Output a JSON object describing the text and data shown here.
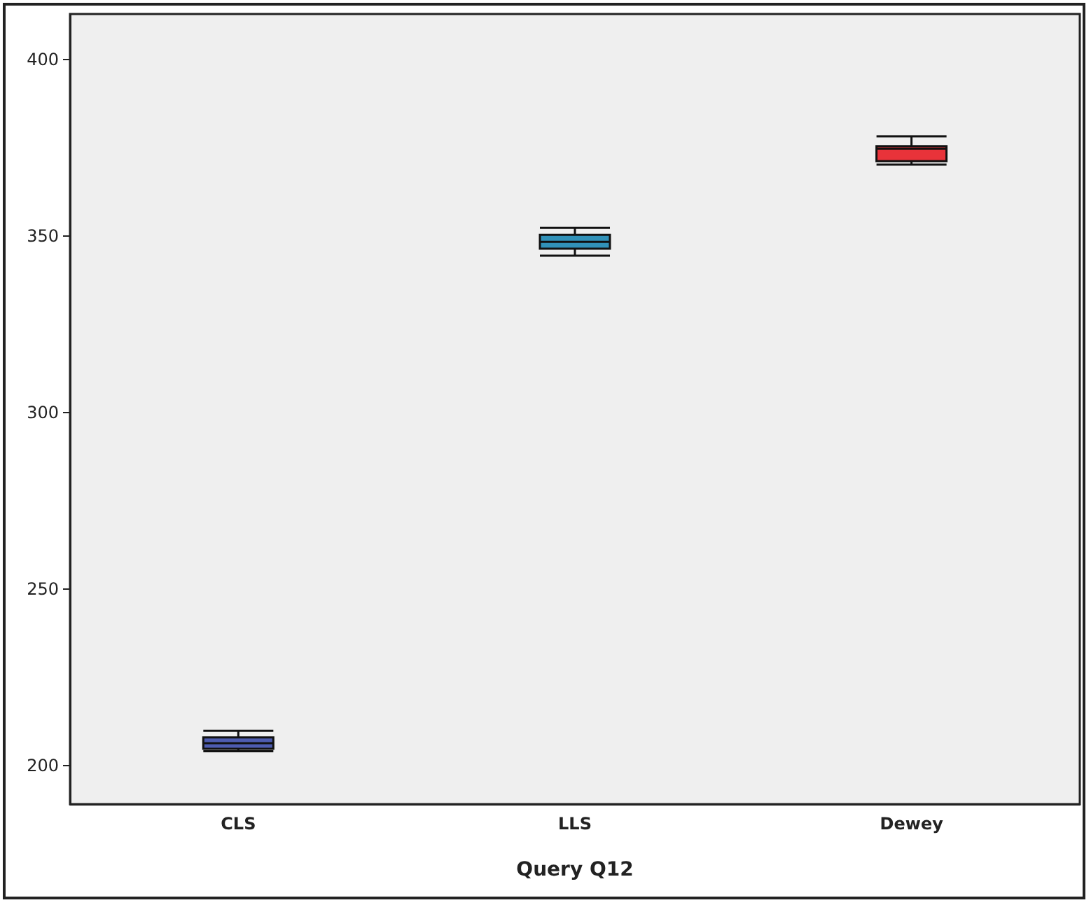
{
  "chart_data": {
    "type": "box",
    "xlabel": "Query Q12",
    "categories": [
      "CLS",
      "LLS",
      "Dewey"
    ],
    "colors": [
      "#4e5cb0",
      "#3191b8",
      "#e8333a"
    ],
    "boxes": [
      {
        "low": 204,
        "q1": 204.7,
        "median": 206.3,
        "q3": 207.9,
        "high": 209.8
      },
      {
        "low": 344.5,
        "q1": 346.5,
        "median": 348.4,
        "q3": 350.4,
        "high": 352.4
      },
      {
        "low": 370.3,
        "q1": 371.3,
        "median": 374.8,
        "q3": 375.5,
        "high": 378.3
      }
    ],
    "ylim": [
      189,
      413
    ],
    "yticks": [
      200,
      250,
      300,
      350,
      400
    ],
    "grid": false
  }
}
